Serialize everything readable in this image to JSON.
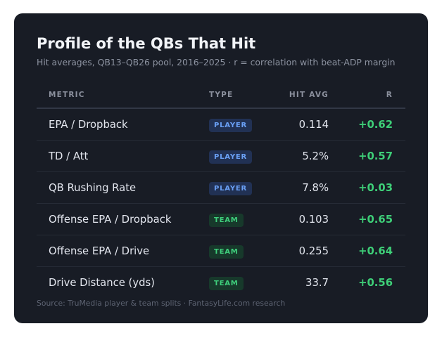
{
  "title": "Profile of the QBs That Hit",
  "subtitle": "Hit averages, QB13–QB26 pool, 2016–2025 · r = correlation with beat-ADP margin",
  "columns": {
    "metric": "METRIC",
    "type": "TYPE",
    "hit_avg": "HIT AVG",
    "r": "R"
  },
  "rows": [
    {
      "metric": "EPA / Dropback",
      "type": "PLAYER",
      "hit_avg": "0.114",
      "r": "+0.62"
    },
    {
      "metric": "TD / Att",
      "type": "PLAYER",
      "hit_avg": "5.2%",
      "r": "+0.57"
    },
    {
      "metric": "QB Rushing Rate",
      "type": "PLAYER",
      "hit_avg": "7.8%",
      "r": "+0.03"
    },
    {
      "metric": "Offense EPA / Dropback",
      "type": "TEAM",
      "hit_avg": "0.103",
      "r": "+0.65"
    },
    {
      "metric": "Offense EPA / Drive",
      "type": "TEAM",
      "hit_avg": "0.255",
      "r": "+0.64"
    },
    {
      "metric": "Drive Distance (yds)",
      "type": "TEAM",
      "hit_avg": "33.7",
      "r": "+0.56"
    }
  ],
  "source": "Source: TruMedia player & team splits · FantasyLife.com research",
  "colors": {
    "card_bg": "#181c25",
    "player_badge_text": "#6aa0f5",
    "team_badge_text": "#3fcf7c",
    "r_value": "#3ecf78"
  }
}
